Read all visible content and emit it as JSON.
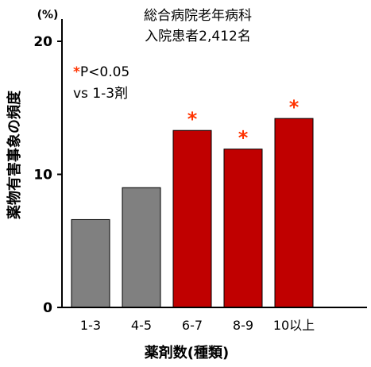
{
  "chart_data": {
    "type": "bar",
    "title": "総合病院老年病科",
    "subtitle": "入院患者2,412名",
    "ylabel": "薬物有害事象の頻度",
    "yunit": "(%)",
    "xlabel": "薬剤数(種類)",
    "ylim": [
      0,
      20
    ],
    "yticks": [
      0,
      10,
      20
    ],
    "categories": [
      "1-3",
      "4-5",
      "6-7",
      "8-9",
      "10以上"
    ],
    "values": [
      6.6,
      9.0,
      13.3,
      11.9,
      14.2
    ],
    "bar_colors": [
      "#808080",
      "#808080",
      "#c00000",
      "#c00000",
      "#c00000"
    ],
    "significant": [
      false,
      false,
      true,
      true,
      true
    ],
    "significance_mark": "*",
    "significance_color": "#ff3300",
    "legend_mark": "*",
    "legend_line1": "P<0.05",
    "legend_line2": "vs 1-3剤"
  }
}
